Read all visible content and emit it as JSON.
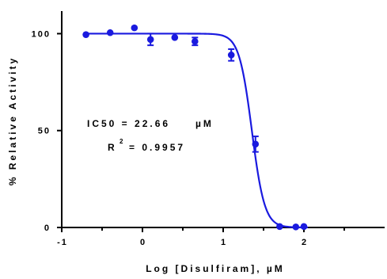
{
  "chart_data": {
    "type": "scatter",
    "xlabel": "Log [Disulfiram], µM",
    "ylabel": "% Relative Activity",
    "xlim": [
      -1,
      3
    ],
    "ylim": [
      0,
      110
    ],
    "x_ticks": [
      -1,
      0,
      1,
      2
    ],
    "x_tick_labels": [
      "-1",
      "0",
      "1",
      "2"
    ],
    "y_ticks": [
      0,
      50,
      100
    ],
    "y_tick_labels": [
      "0",
      "50",
      "100"
    ],
    "grid": false,
    "series_color": "#1a1adf",
    "points": [
      {
        "x": -0.7,
        "y": 99.5,
        "err": 0
      },
      {
        "x": -0.4,
        "y": 100.5,
        "err": 0
      },
      {
        "x": -0.1,
        "y": 103,
        "err": 0
      },
      {
        "x": 0.1,
        "y": 97,
        "err": 3
      },
      {
        "x": 0.4,
        "y": 98,
        "err": 0
      },
      {
        "x": 0.65,
        "y": 96,
        "err": 2
      },
      {
        "x": 1.1,
        "y": 89,
        "err": 3
      },
      {
        "x": 1.4,
        "y": 43,
        "err": 4
      },
      {
        "x": 1.7,
        "y": 0.5,
        "err": 0
      },
      {
        "x": 1.9,
        "y": 0.3,
        "err": 0
      },
      {
        "x": 2.0,
        "y": 0.5,
        "err": 0
      }
    ],
    "fit": {
      "top": 100,
      "bottom": 0,
      "log_ic50": 1.3553,
      "hill": -5.5,
      "x_start": -0.7,
      "x_end": 2.05
    },
    "annotations": {
      "ic50_text": "IC50 = 22.66",
      "ic50_unit": "µM",
      "r2_prefix": "R",
      "r2_sup": "2",
      "r2_value": "= 0.9957"
    }
  }
}
